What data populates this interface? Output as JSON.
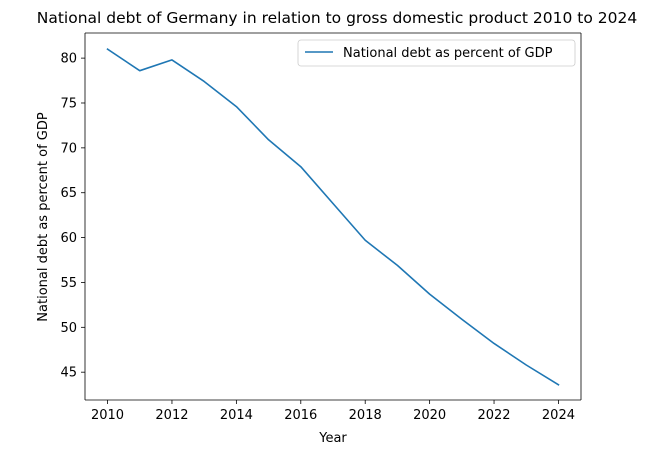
{
  "chart_data": {
    "type": "line",
    "title": "National debt of Germany in relation to gross domestic product 2010 to 2024",
    "xlabel": "Year",
    "ylabel": "National debt as percent of GDP",
    "x": [
      2010,
      2011,
      2012,
      2013,
      2014,
      2015,
      2016,
      2017,
      2018,
      2019,
      2020,
      2021,
      2022,
      2023,
      2024
    ],
    "series": [
      {
        "name": "National debt as percent of GDP",
        "color": "#1f77b4",
        "values": [
          81.0,
          78.6,
          79.8,
          77.4,
          74.6,
          70.9,
          67.9,
          63.8,
          59.7,
          56.9,
          53.7,
          50.9,
          48.2,
          45.8,
          43.6
        ]
      }
    ],
    "xticks": [
      2010,
      2012,
      2014,
      2016,
      2018,
      2020,
      2022,
      2024
    ],
    "yticks": [
      45,
      50,
      55,
      60,
      65,
      70,
      75,
      80
    ],
    "xlim": [
      2009.3,
      2024.7
    ],
    "ylim": [
      41.9,
      82.8
    ],
    "grid": false,
    "legend_position": "top-right"
  }
}
